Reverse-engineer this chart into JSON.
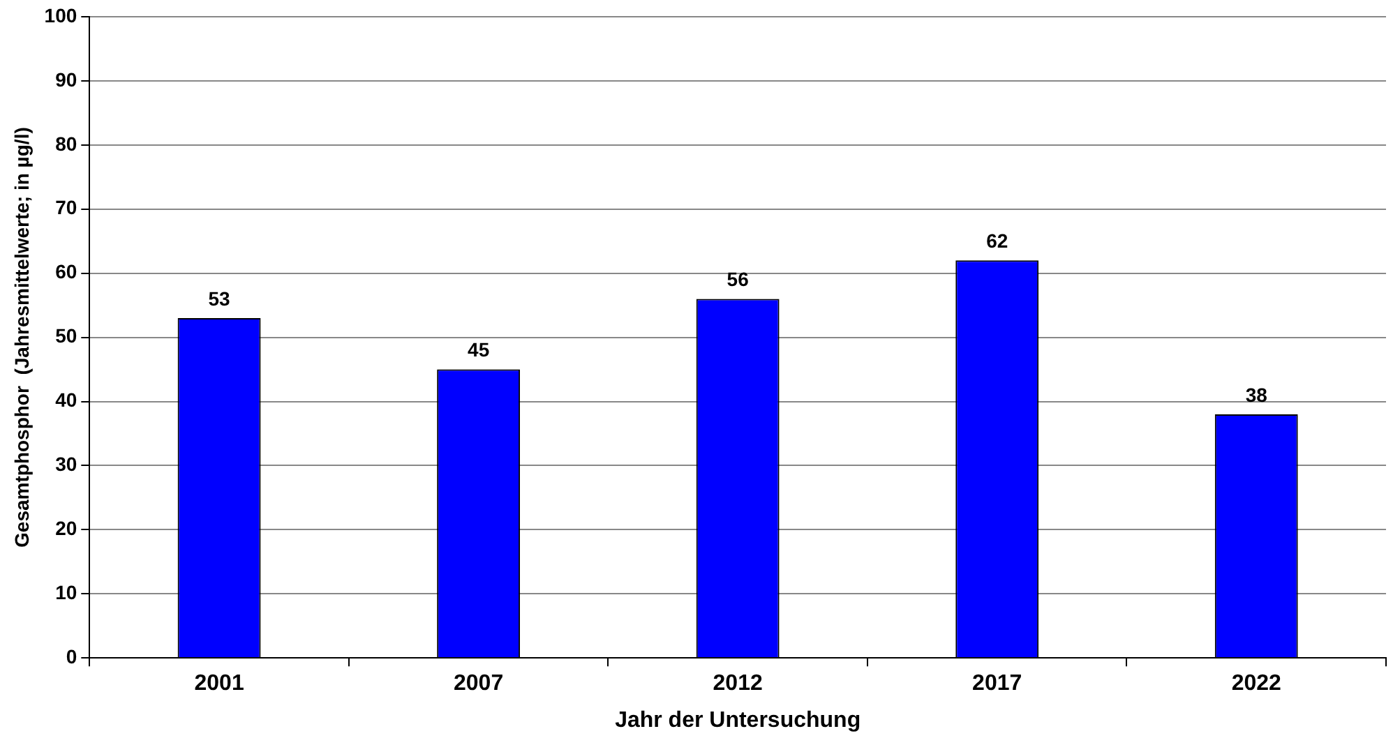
{
  "chart_data": {
    "type": "bar",
    "xlabel": "Jahr der Untersuchung",
    "ylabel": "Gesamtphosphor  (Jahresmittelwerte; in µg/l)",
    "categories": [
      "2001",
      "2007",
      "2012",
      "2017",
      "2022"
    ],
    "values": [
      53,
      45,
      56,
      62,
      38
    ],
    "color": "#0000ff",
    "ylim": [
      0,
      100
    ],
    "yticks": [
      0,
      10,
      20,
      30,
      40,
      50,
      60,
      70,
      80,
      90,
      100
    ],
    "grid": "y",
    "data_labels": true,
    "legend": false
  }
}
